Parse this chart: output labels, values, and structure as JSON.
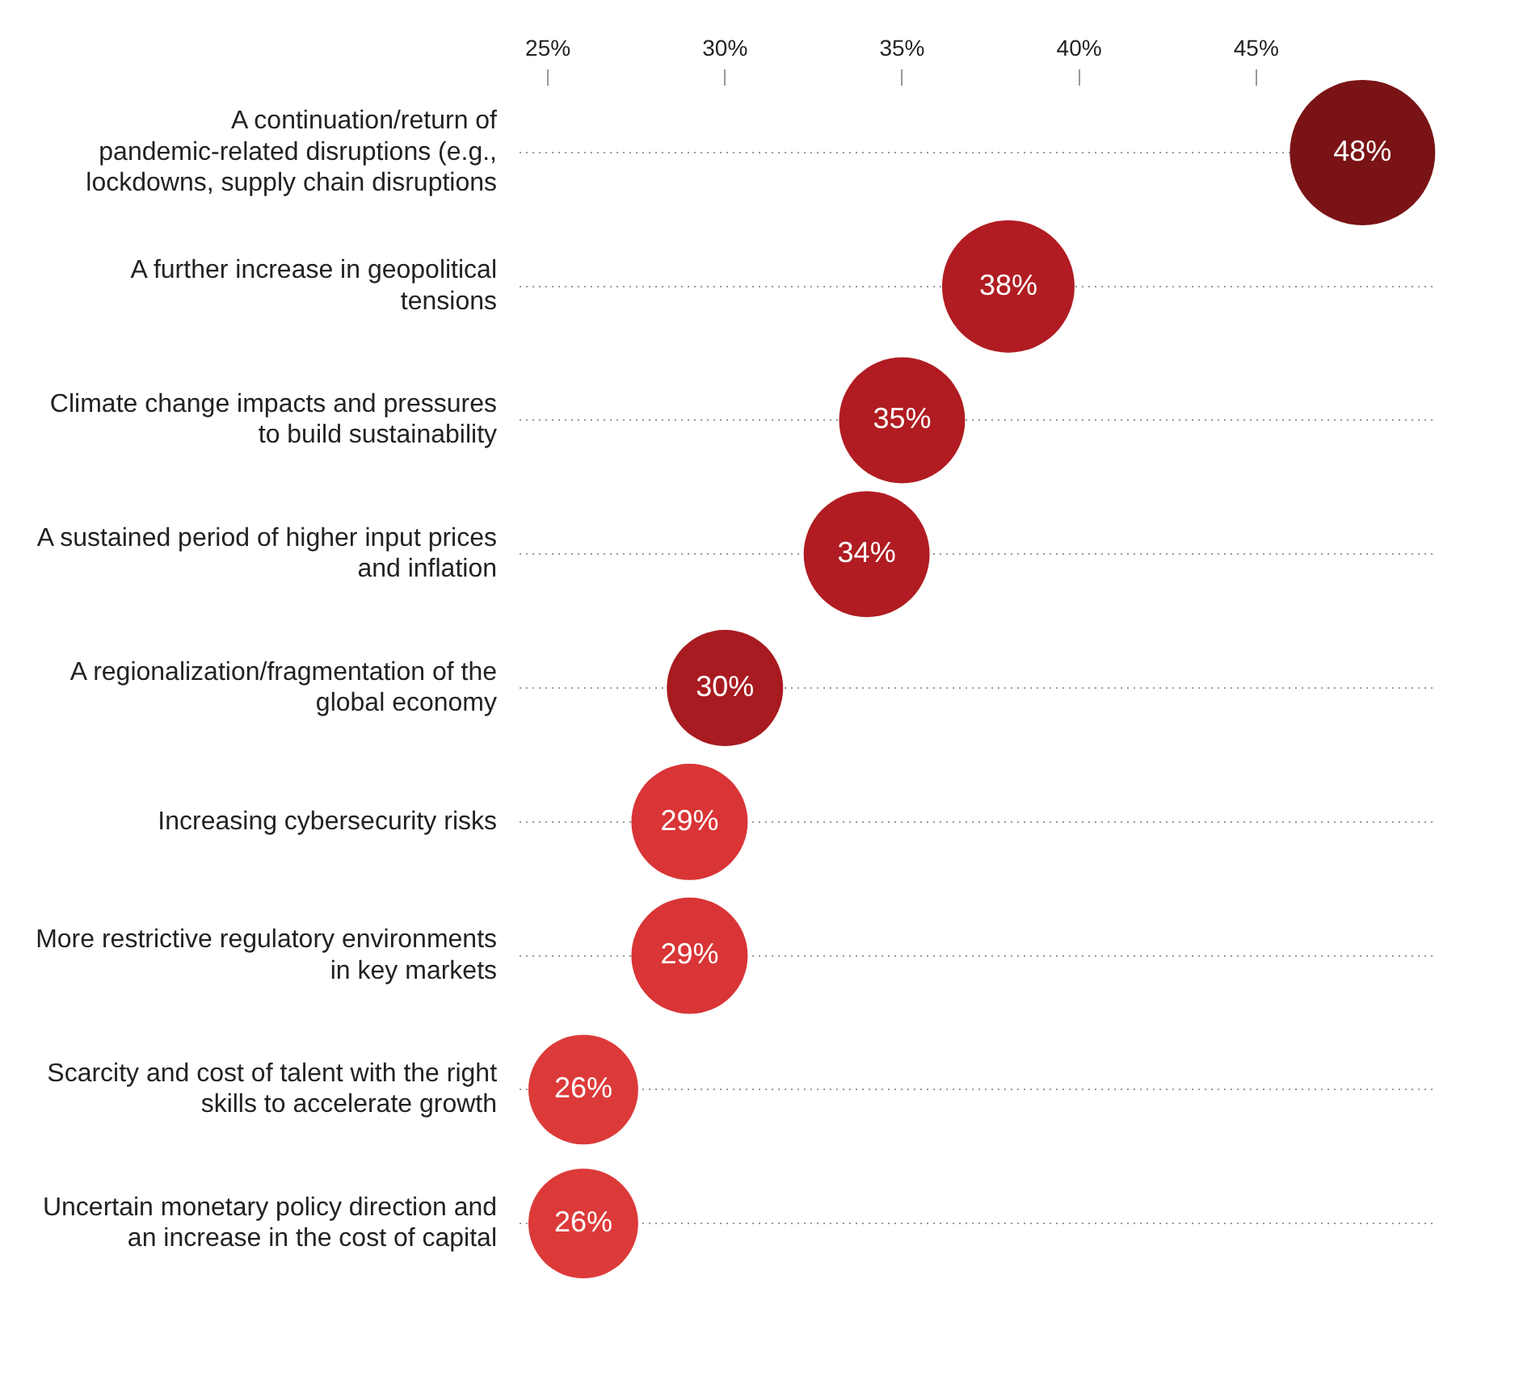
{
  "chart_data": {
    "type": "bubble",
    "orientation": "horizontal",
    "categories": [
      "A continuation/return of pandemic-related disruptions (e.g., lockdowns, supply chain disruptions",
      "A further increase in geopolitical tensions",
      "Climate change impacts and pressures to build sustainability",
      "A sustained period of higher input prices and inflation",
      "A regionalization/fragmentation of the global economy",
      "Increasing cybersecurity risks",
      "More restrictive regulatory environments in key markets",
      "Scarcity and cost of talent with the right skills to accelerate growth",
      "Uncertain monetary policy direction and an increase in the cost of capital"
    ],
    "values": [
      48,
      38,
      35,
      34,
      30,
      29,
      29,
      26,
      26
    ],
    "sizes": [
      1,
      0.83,
      0.75,
      0.75,
      0.64,
      0.64,
      0.64,
      0.57,
      0.57
    ],
    "colors": [
      "#7a1315",
      "#b01c21",
      "#b01c21",
      "#b01c21",
      "#a81b20",
      "#d93436",
      "#d93436",
      "#dc3a39",
      "#dc3a39"
    ],
    "value_labels": [
      "48%",
      "38%",
      "35%",
      "34%",
      "30%",
      "29%",
      "29%",
      "26%",
      "26%"
    ],
    "xlim": [
      24.2,
      50
    ],
    "xticks": [
      {
        "value": 25,
        "label": "25%"
      },
      {
        "value": 30,
        "label": "30%"
      },
      {
        "value": 35,
        "label": "35%"
      },
      {
        "value": 40,
        "label": "40%"
      },
      {
        "value": 45,
        "label": "45%"
      }
    ],
    "grid": "y",
    "legend": false
  }
}
